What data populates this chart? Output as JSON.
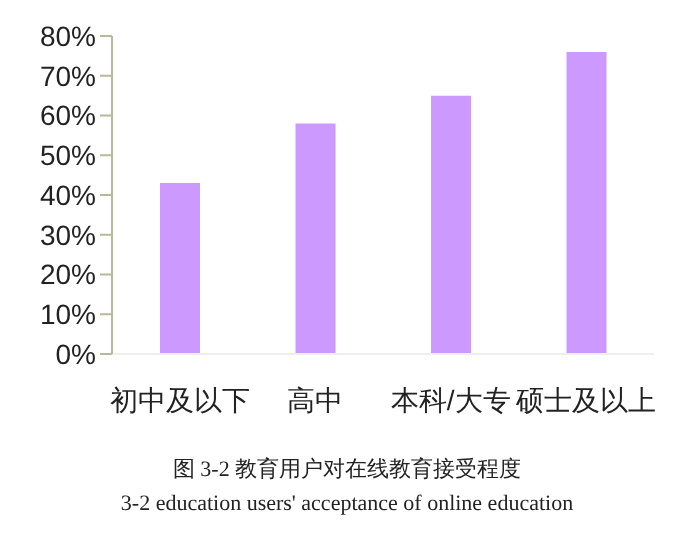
{
  "chart_data": {
    "type": "bar",
    "categories": [
      "初中及以下",
      "高中",
      "本科/大专",
      "硕士及以上"
    ],
    "values": [
      0.43,
      0.58,
      0.65,
      0.76
    ],
    "color": "#cc99ff",
    "ylim": [
      0,
      0.8
    ],
    "yticks": [
      {
        "value": 0,
        "label": "0%"
      },
      {
        "value": 0.1,
        "label": "10%"
      },
      {
        "value": 0.2,
        "label": "20%"
      },
      {
        "value": 0.3,
        "label": "30%"
      },
      {
        "value": 0.4,
        "label": "40%"
      },
      {
        "value": 0.5,
        "label": "50%"
      },
      {
        "value": 0.6,
        "label": "60%"
      },
      {
        "value": 0.7,
        "label": "70%"
      },
      {
        "value": 0.8,
        "label": "80%"
      }
    ],
    "grid": false,
    "annotations": [
      "图 3-2  教育用户对在线教育接受程度",
      "3-2 education users' acceptance of online education"
    ]
  }
}
